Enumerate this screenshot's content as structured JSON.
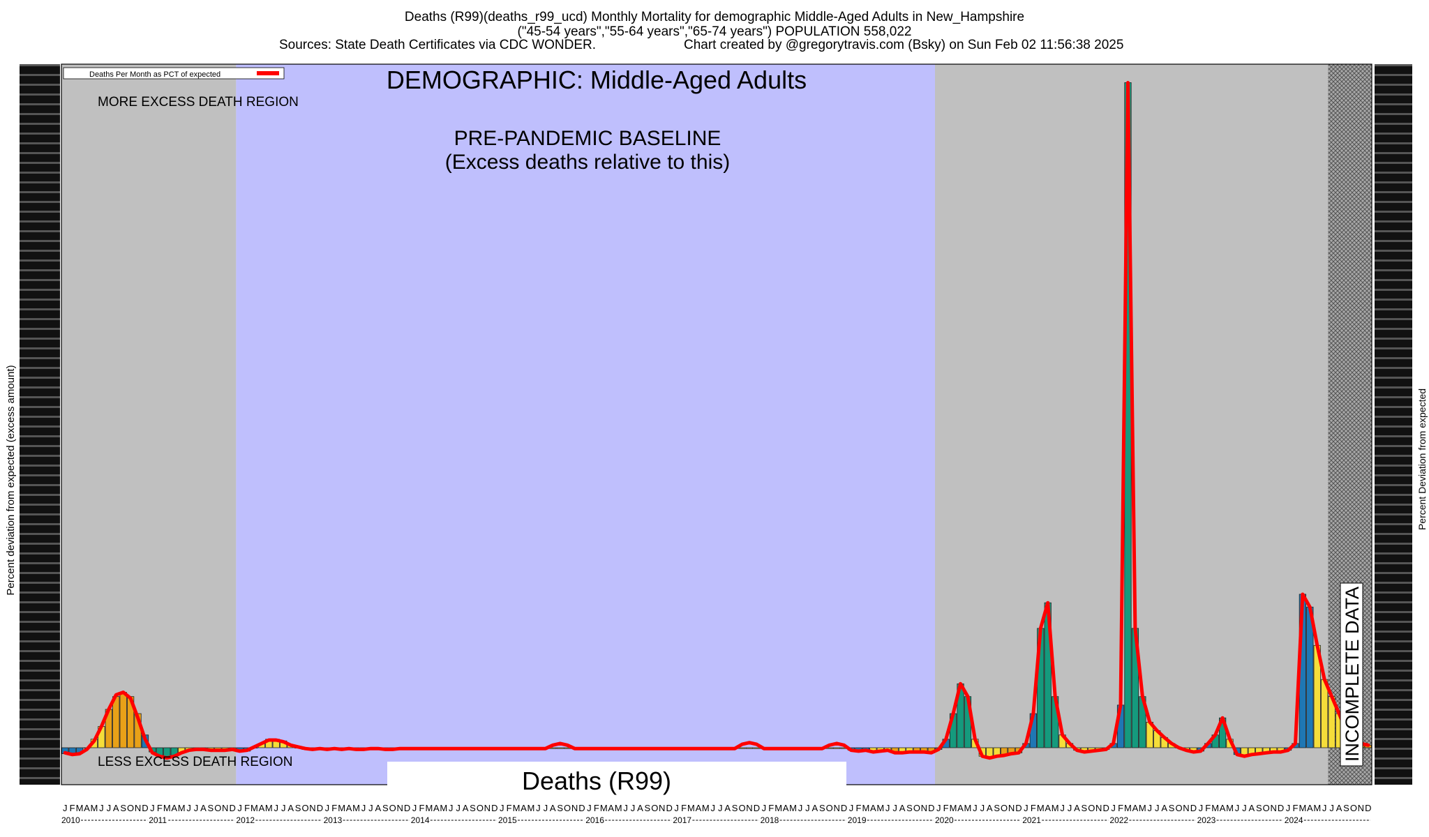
{
  "header": {
    "line1": "Deaths (R99)(deaths_r99_ucd) Monthly Mortality for demographic Middle-Aged Adults in New_Hampshire",
    "line2": "(\"45-54 years\",\"55-64 years\",\"65-74 years\") POPULATION 558,022",
    "line3_left": "Sources: State Death Certificates via CDC WONDER.",
    "line3_right": "Chart created by @gregorytravis.com (Bsky) on Sun Feb 02 11:56:38 2025"
  },
  "chart_data": {
    "type": "bar",
    "title": "DEMOGRAPHIC: Middle-Aged Adults",
    "baseline_label_line1": "PRE-PANDEMIC BASELINE",
    "baseline_label_line2": "(Excess deaths relative to this)",
    "more_region_label": "MORE EXCESS DEATH REGION",
    "less_region_label": "LESS EXCESS DEATH REGION",
    "incomplete_label": "INCOMPLETE DATA",
    "footer_box_label": "Deaths (R99)",
    "ylabel_left": "Percent deviation from expected (excess amount)",
    "ylabel_right": "Percent Deviation from expected",
    "legend": {
      "label": "Deaths Per Month as PCT of expected",
      "color": "#ff0000",
      "placement": "top-left"
    },
    "years": [
      "2010",
      "2011",
      "2012",
      "2013",
      "2014",
      "2015",
      "2016",
      "2017",
      "2018",
      "2019",
      "2020",
      "2021",
      "2022",
      "2023",
      "2024"
    ],
    "month_letters": [
      "J",
      "F",
      "M",
      "A",
      "M",
      "J",
      "J",
      "A",
      "S",
      "O",
      "N",
      "D"
    ],
    "x_range": [
      "2010-01",
      "2024-12"
    ],
    "ylim": [
      -10,
      800
    ],
    "regions": [
      {
        "name": "more-excess",
        "from": "2010-01",
        "to": "2011-12",
        "color": "#c0c0c0"
      },
      {
        "name": "baseline",
        "from": "2012-01",
        "to": "2019-12",
        "color": "#bfbffd"
      },
      {
        "name": "pandemic",
        "from": "2020-01",
        "to": "2024-06",
        "color": "#c0c0c0"
      },
      {
        "name": "incomplete",
        "from": "2024-07",
        "to": "2024-12",
        "color": "#9c9c9c"
      }
    ],
    "colors": {
      "blue": "#1f77b4",
      "green": "#159a7d",
      "yellow": "#f5dd3a",
      "orange": "#e8a118",
      "line": "#ff0000"
    },
    "values": [
      -7,
      -7,
      -6,
      0,
      10,
      25,
      45,
      60,
      65,
      60,
      40,
      15,
      -5,
      -10,
      -12,
      -10,
      -6,
      -3,
      -2,
      -2,
      -3,
      -4,
      -3,
      -2,
      -5,
      -4,
      0,
      5,
      10,
      10,
      8,
      3,
      0,
      -2,
      -3,
      -2,
      -2,
      -1,
      -2,
      -1,
      -2,
      -2,
      -1,
      -1,
      -2,
      -2,
      -1,
      -1,
      -1,
      -1,
      -1,
      -1,
      -1,
      -1,
      -1,
      -1,
      -1,
      -1,
      -1,
      -1,
      -1,
      -1,
      -1,
      -1,
      -1,
      -1,
      -1,
      -1,
      -1,
      -1,
      -1,
      -1,
      -1,
      -1,
      -1,
      -1,
      -1,
      -1,
      -1,
      -1,
      -1,
      -1,
      -1,
      -1,
      -1,
      -1,
      -1,
      -1,
      -1,
      -1,
      -1,
      -1,
      -1,
      -1,
      -1,
      -1,
      -1,
      -1,
      -1,
      -1,
      -1,
      -1,
      -1,
      -1,
      -1,
      -1,
      -1,
      -1,
      -3,
      -4,
      -3,
      -5,
      -4,
      -3,
      -6,
      -6,
      -5,
      -5,
      -5,
      -6,
      -2,
      10,
      40,
      75,
      60,
      10,
      -10,
      -12,
      -10,
      -9,
      -7,
      -6,
      5,
      40,
      140,
      170,
      60,
      15,
      5,
      -3,
      -5,
      -4,
      -3,
      -2,
      5,
      50,
      780,
      140,
      60,
      30,
      20,
      12,
      5,
      0,
      -3,
      -5,
      -4,
      5,
      15,
      35,
      10,
      -8,
      -10,
      -8,
      -7,
      -6,
      -5,
      -5,
      -3,
      5,
      180,
      165,
      120,
      80,
      60,
      40,
      20,
      10,
      5,
      3
    ],
    "bar_color_keys": [
      "blue",
      "blue",
      "blue",
      "blue",
      "yellow",
      "yellow",
      "orange",
      "orange",
      "orange",
      "orange",
      "orange",
      "blue",
      "green",
      "green",
      "green",
      "green",
      "yellow",
      "yellow",
      "yellow",
      "yellow",
      "yellow",
      "yellow",
      "yellow",
      "yellow",
      "blue",
      "blue",
      "yellow",
      "yellow",
      "yellow",
      "yellow",
      "yellow",
      "yellow",
      "yellow",
      "yellow",
      "yellow",
      "yellow",
      "yellow",
      "yellow",
      "yellow",
      "yellow",
      "yellow",
      "yellow",
      "yellow",
      "yellow",
      "yellow",
      "yellow",
      "yellow",
      "yellow",
      "yellow",
      "yellow",
      "yellow",
      "yellow",
      "yellow",
      "yellow",
      "yellow",
      "yellow",
      "yellow",
      "yellow",
      "yellow",
      "yellow",
      "yellow",
      "yellow",
      "yellow",
      "yellow",
      "yellow",
      "yellow",
      "yellow",
      "yellow",
      "yellow",
      "yellow",
      "yellow",
      "yellow",
      "yellow",
      "yellow",
      "yellow",
      "yellow",
      "yellow",
      "yellow",
      "yellow",
      "yellow",
      "yellow",
      "yellow",
      "yellow",
      "yellow",
      "yellow",
      "yellow",
      "yellow",
      "yellow",
      "yellow",
      "yellow",
      "yellow",
      "yellow",
      "yellow",
      "yellow",
      "yellow",
      "yellow",
      "yellow",
      "yellow",
      "yellow",
      "yellow",
      "yellow",
      "yellow",
      "yellow",
      "yellow",
      "yellow",
      "yellow",
      "yellow",
      "yellow",
      "blue",
      "blue",
      "blue",
      "yellow",
      "yellow",
      "yellow",
      "orange",
      "yellow",
      "yellow",
      "orange",
      "orange",
      "orange",
      "blue",
      "blue",
      "green",
      "green",
      "green",
      "yellow",
      "yellow",
      "yellow",
      "yellow",
      "orange",
      "orange",
      "orange",
      "blue",
      "blue",
      "green",
      "green",
      "green",
      "yellow",
      "yellow",
      "yellow",
      "yellow",
      "yellow",
      "yellow",
      "yellow",
      "blue",
      "blue",
      "green",
      "green",
      "green",
      "yellow",
      "yellow",
      "yellow",
      "yellow",
      "yellow",
      "yellow",
      "yellow",
      "blue",
      "blue",
      "green",
      "green",
      "yellow",
      "blue",
      "yellow",
      "yellow",
      "yellow",
      "yellow",
      "yellow",
      "yellow",
      "blue",
      "blue",
      "blue",
      "blue",
      "yellow",
      "yellow",
      "yellow",
      "yellow",
      "yellow",
      "orange",
      "orange",
      "orange"
    ],
    "line_values": [
      -6,
      -8,
      -7,
      -2,
      8,
      25,
      45,
      62,
      65,
      58,
      35,
      10,
      -6,
      -10,
      -12,
      -10,
      -6,
      -3,
      -2,
      -2,
      -3,
      -3,
      -3,
      -2,
      -4,
      -3,
      1,
      5,
      9,
      9,
      7,
      3,
      1,
      -1,
      -2,
      -1,
      -2,
      -1,
      -2,
      -1,
      -2,
      -2,
      -1,
      -1,
      -2,
      -2,
      -1,
      -1,
      -1,
      -1,
      -1,
      -1,
      -1,
      -1,
      -1,
      -1,
      -1,
      -1,
      -1,
      -1,
      -1,
      -1,
      -1,
      -1,
      -1,
      -1,
      -1,
      3,
      5,
      3,
      -1,
      -1,
      -1,
      -1,
      -1,
      -1,
      -1,
      -1,
      -1,
      -1,
      -1,
      -1,
      -1,
      -1,
      -1,
      -1,
      -1,
      -1,
      -1,
      -1,
      -1,
      -1,
      -1,
      4,
      6,
      4,
      -1,
      -1,
      -1,
      -1,
      -1,
      -1,
      -1,
      -1,
      -1,
      3,
      5,
      3,
      -3,
      -4,
      -3,
      -5,
      -4,
      -3,
      -6,
      -6,
      -5,
      -5,
      -5,
      -6,
      -2,
      10,
      40,
      75,
      60,
      10,
      -10,
      -12,
      -10,
      -9,
      -7,
      -6,
      5,
      40,
      140,
      170,
      60,
      15,
      5,
      -3,
      -5,
      -4,
      -3,
      -2,
      5,
      50,
      780,
      140,
      60,
      30,
      20,
      12,
      5,
      0,
      -3,
      -5,
      -4,
      5,
      15,
      35,
      10,
      -8,
      -10,
      -8,
      -7,
      -6,
      -5,
      -5,
      -3,
      5,
      180,
      165,
      120,
      80,
      60,
      40,
      20,
      10,
      5,
      3
    ]
  }
}
